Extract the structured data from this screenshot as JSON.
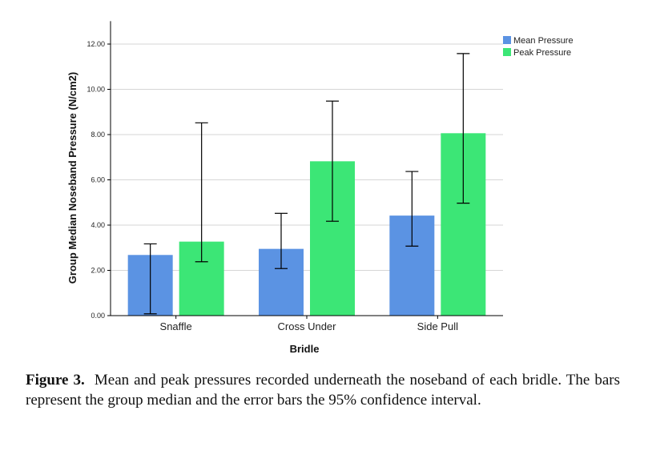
{
  "chart_data": {
    "type": "bar",
    "xlabel": "Bridle",
    "ylabel": "Group Median Noseband Pressure (N/cm2)",
    "categories": [
      "Snaffle",
      "Cross Under",
      "Side Pull"
    ],
    "ylim": [
      0,
      12.8
    ],
    "yticks": [
      "0.00",
      "2.00",
      "4.00",
      "6.00",
      "8.00",
      "10.00",
      "12.00"
    ],
    "ytick_values": [
      0,
      2,
      4,
      6,
      8,
      10,
      12
    ],
    "grid": true,
    "legend_position": "top-right",
    "series": [
      {
        "name": "Mean Pressure",
        "color": "#5b93e3",
        "values": [
          2.68,
          2.95,
          4.42
        ],
        "ci_low": [
          0.08,
          2.08,
          3.07
        ],
        "ci_high": [
          3.17,
          4.52,
          6.37
        ]
      },
      {
        "name": "Peak Pressure",
        "color": "#3ce676",
        "values": [
          3.27,
          6.82,
          8.06
        ],
        "ci_low": [
          2.38,
          4.17,
          4.97
        ],
        "ci_high": [
          8.52,
          9.48,
          11.58
        ]
      }
    ]
  },
  "caption": {
    "label": "Figure 3.",
    "text": "Mean and peak pressures recorded underneath the noseband of each bridle. The bars represent the group median and the error bars the 95% confidence interval."
  }
}
